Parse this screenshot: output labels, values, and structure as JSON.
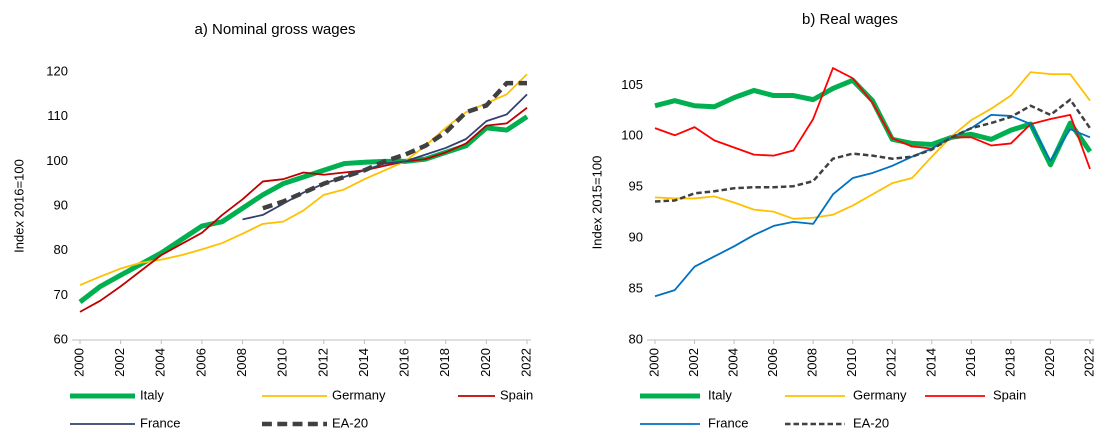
{
  "chart_data": [
    {
      "type": "line",
      "title": "a) Nominal gross wages",
      "y_label": "Index 2016=100",
      "x": [
        2000,
        2001,
        2002,
        2003,
        2004,
        2005,
        2006,
        2007,
        2008,
        2009,
        2010,
        2011,
        2012,
        2013,
        2014,
        2015,
        2016,
        2017,
        2018,
        2019,
        2020,
        2021,
        2022
      ],
      "xlim": [
        2000,
        2022
      ],
      "xticks": [
        2000,
        2002,
        2004,
        2006,
        2008,
        2010,
        2012,
        2014,
        2016,
        2018,
        2020,
        2022
      ],
      "ylim": [
        60,
        120
      ],
      "yticks": [
        60,
        70,
        80,
        90,
        100,
        110,
        120
      ],
      "grid": false,
      "series": [
        {
          "name": "Italy",
          "color": "#00b050",
          "line_width": 5,
          "dashed": false,
          "values": [
            68.5,
            72,
            74.5,
            77,
            79.5,
            82.5,
            85.5,
            86.5,
            89.5,
            92.5,
            95,
            96.5,
            98,
            99.5,
            99.8,
            100,
            100,
            100.5,
            102,
            103.5,
            107.5,
            107,
            110
          ]
        },
        {
          "name": "Germany",
          "color": "#ffc000",
          "line_width": 1.8,
          "dashed": false,
          "values": [
            72.3,
            74.2,
            76,
            77.3,
            78,
            79,
            80.3,
            81.7,
            83.8,
            86,
            86.5,
            89,
            92.5,
            93.7,
            96,
            98,
            100,
            103.5,
            107.5,
            111,
            113,
            115,
            119.5
          ]
        },
        {
          "name": "Spain",
          "color": "#c00000",
          "line_width": 1.8,
          "dashed": false,
          "values": [
            66.3,
            68.8,
            72,
            75.5,
            79,
            81.5,
            84,
            88,
            91.5,
            95.5,
            96,
            97.5,
            97,
            97.5,
            98,
            99,
            100,
            100.5,
            102,
            104,
            108,
            108.5,
            112
          ]
        },
        {
          "name": "France",
          "color": "#333f70",
          "line_width": 1.8,
          "dashed": false,
          "values": [
            null,
            null,
            null,
            null,
            null,
            null,
            null,
            null,
            87,
            88,
            90.5,
            93,
            95,
            96.5,
            98,
            99.5,
            100,
            101.5,
            103,
            105,
            109,
            110.5,
            115
          ]
        },
        {
          "name": "EA-20",
          "color": "#404040",
          "line_width": 4.5,
          "dashed": true,
          "values": [
            null,
            null,
            null,
            null,
            null,
            null,
            null,
            null,
            null,
            89.5,
            91,
            93,
            95,
            96.5,
            98,
            100,
            101.5,
            103.5,
            106.5,
            111,
            112.5,
            117.5,
            117.5
          ]
        }
      ]
    },
    {
      "type": "line",
      "title": "b) Real wages",
      "y_label": "Index 2015=100",
      "x": [
        2000,
        2001,
        2002,
        2003,
        2004,
        2005,
        2006,
        2007,
        2008,
        2009,
        2010,
        2011,
        2012,
        2013,
        2014,
        2015,
        2016,
        2017,
        2018,
        2019,
        2020,
        2021,
        2022
      ],
      "xlim": [
        2000,
        2022
      ],
      "xticks": [
        2000,
        2002,
        2004,
        2006,
        2008,
        2010,
        2012,
        2014,
        2016,
        2018,
        2020,
        2022
      ],
      "ylim": [
        80,
        107
      ],
      "yticks": [
        80,
        85,
        90,
        95,
        100,
        105
      ],
      "grid": false,
      "series": [
        {
          "name": "Italy",
          "color": "#00b050",
          "line_width": 5,
          "dashed": false,
          "values": [
            103,
            103.5,
            103,
            102.9,
            103.8,
            104.5,
            104,
            104,
            103.6,
            104.7,
            105.5,
            103.5,
            99.7,
            99.3,
            99.2,
            99.9,
            100.2,
            99.7,
            100.6,
            101.2,
            97.2,
            101.3,
            98.5
          ]
        },
        {
          "name": "Germany",
          "color": "#ffc000",
          "line_width": 1.8,
          "dashed": false,
          "values": [
            94,
            93.9,
            93.9,
            94.1,
            93.5,
            92.8,
            92.6,
            91.9,
            92,
            92.3,
            93.2,
            94.3,
            95.4,
            95.9,
            98,
            100,
            101.6,
            102.7,
            104,
            106.3,
            106.1,
            106.1,
            103.5
          ]
        },
        {
          "name": "Spain",
          "color": "#ff0000",
          "line_width": 1.8,
          "dashed": false,
          "values": [
            100.8,
            100.1,
            100.9,
            99.6,
            98.9,
            98.2,
            98.1,
            98.6,
            101.7,
            106.7,
            105.7,
            103.3,
            99.8,
            99,
            98.8,
            99.9,
            99.9,
            99.1,
            99.3,
            101.2,
            101.7,
            102.1,
            96.8
          ]
        },
        {
          "name": "France",
          "color": "#0070c0",
          "line_width": 1.8,
          "dashed": false,
          "values": [
            84.3,
            84.9,
            87.2,
            88.2,
            89.2,
            90.3,
            91.2,
            91.6,
            91.4,
            94.3,
            95.9,
            96.4,
            97.1,
            98,
            98.8,
            99.9,
            100.8,
            102.1,
            102,
            101.2,
            97.6,
            100.7,
            99.9
          ]
        },
        {
          "name": "EA-20",
          "color": "#404040",
          "line_width": 2.5,
          "dashed": true,
          "values": [
            93.6,
            93.7,
            94.4,
            94.6,
            94.9,
            95,
            95,
            95.1,
            95.6,
            97.8,
            98.3,
            98.1,
            97.8,
            98,
            98.7,
            99.9,
            100.8,
            101.3,
            101.9,
            103,
            102.1,
            103.6,
            100.8
          ]
        }
      ]
    }
  ]
}
